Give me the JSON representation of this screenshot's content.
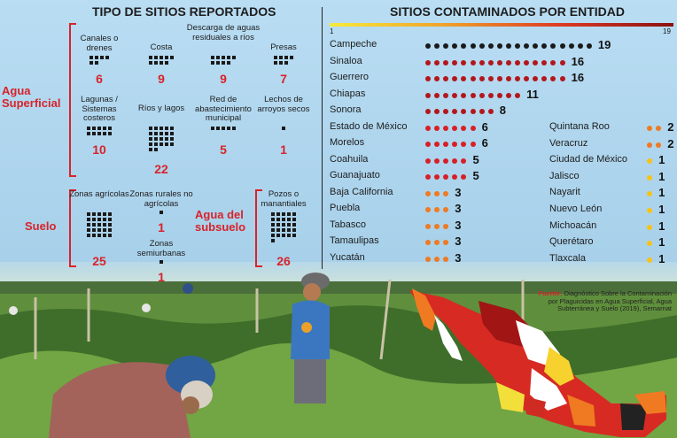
{
  "left_title": "TIPO DE SITIOS REPORTADOS",
  "right_title": "SITIOS CONTAMINADOS POR ENTIDAD",
  "groups": {
    "superficial": "Agua Superficial",
    "suelo": "Suelo",
    "subsuelo": "Agua del subsuelo"
  },
  "legend": {
    "min": "1",
    "max": "19"
  },
  "source": {
    "label": "Fuente:",
    "text": "Diagnóstico Sobre la Contaminación por Plaguicidas en Agua Superficial, Agua Subterránea y Suelo (2019), Semarnat"
  },
  "colors": {
    "accent": "#d8232a",
    "black": "#1a1a1a",
    "dark_red": "#b3171b",
    "red": "#d81f26",
    "orange": "#f07a22"
  },
  "chart_data": [
    {
      "type": "table",
      "title": "TIPO DE SITIOS REPORTADOS",
      "categories": [
        {
          "group": "Agua Superficial",
          "label": "Canales o drenes",
          "value": 6
        },
        {
          "group": "Agua Superficial",
          "label": "Costa",
          "value": 9
        },
        {
          "group": "Agua Superficial",
          "label": "Descarga de aguas residuales a ríos",
          "value": 9
        },
        {
          "group": "Agua Superficial",
          "label": "Presas",
          "value": 7
        },
        {
          "group": "Agua Superficial",
          "label": "Lagunas / Sistemas costeros",
          "value": 10
        },
        {
          "group": "Agua Superficial",
          "label": "Ríos y lagos",
          "value": 22
        },
        {
          "group": "Agua Superficial",
          "label": "Red de abastecimiento municipal",
          "value": 5
        },
        {
          "group": "Agua Superficial",
          "label": "Lechos de arroyos secos",
          "value": 1
        },
        {
          "group": "Suelo",
          "label": "Zonas agrícolas",
          "value": 25
        },
        {
          "group": "Suelo",
          "label": "Zonas rurales no agrícolas",
          "value": 1
        },
        {
          "group": "Suelo",
          "label": "Zonas semiurbanas",
          "value": 1
        },
        {
          "group": "Agua del subsuelo",
          "label": "Pozos o manantiales",
          "value": 26
        }
      ]
    },
    {
      "type": "scatter",
      "title": "SITIOS CONTAMINADOS POR ENTIDAD",
      "states": [
        {
          "name": "Campeche",
          "value": 19
        },
        {
          "name": "Sinaloa",
          "value": 16
        },
        {
          "name": "Guerrero",
          "value": 16
        },
        {
          "name": "Chiapas",
          "value": 11
        },
        {
          "name": "Sonora",
          "value": 8
        },
        {
          "name": "Estado de México",
          "value": 6
        },
        {
          "name": "Morelos",
          "value": 6
        },
        {
          "name": "Coahuila",
          "value": 5
        },
        {
          "name": "Guanajuato",
          "value": 5
        },
        {
          "name": "Baja California",
          "value": 3
        },
        {
          "name": "Puebla",
          "value": 3
        },
        {
          "name": "Tabasco",
          "value": 3
        },
        {
          "name": "Tamaulipas",
          "value": 3
        },
        {
          "name": "Yucatán",
          "value": 3
        },
        {
          "name": "Quintana Roo",
          "value": 2
        },
        {
          "name": "Veracruz",
          "value": 2
        },
        {
          "name": "Ciudad de México",
          "value": 1
        },
        {
          "name": "Jalisco",
          "value": 1
        },
        {
          "name": "Nayarit",
          "value": 1
        },
        {
          "name": "Nuevo León",
          "value": 1
        },
        {
          "name": "Michoacán",
          "value": 1
        },
        {
          "name": "Querétaro",
          "value": 1
        },
        {
          "name": "Tlaxcala",
          "value": 1
        }
      ]
    }
  ]
}
